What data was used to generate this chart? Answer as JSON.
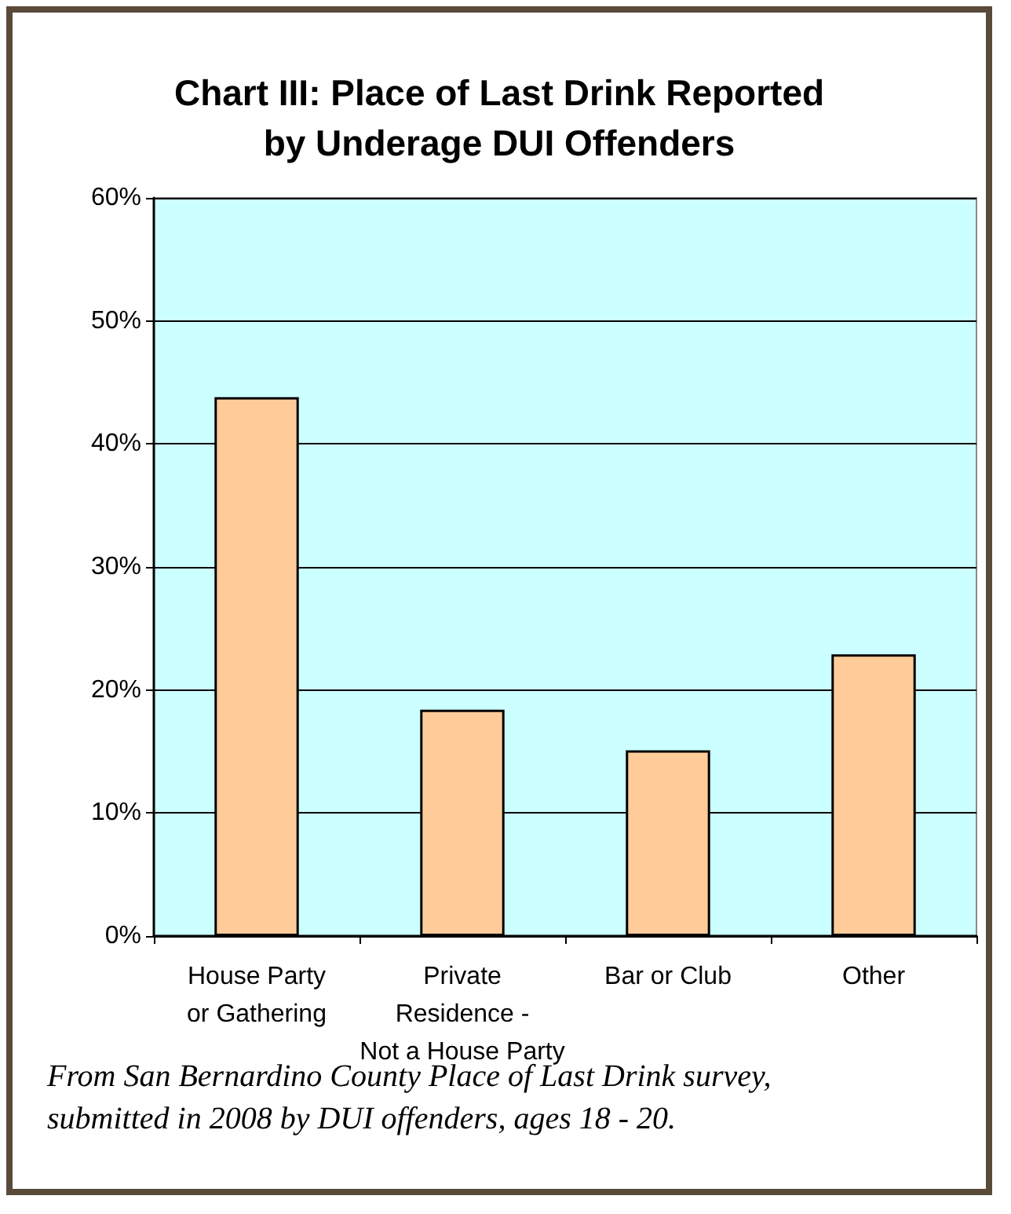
{
  "chart_data": {
    "type": "bar",
    "title": "Chart III: Place of Last Drink Reported\nby Underage DUI Offenders",
    "categories": [
      "House Party\nor Gathering",
      "Private\nResidence -\nNot a House Party",
      "Bar or Club",
      "Other"
    ],
    "values": [
      43.8,
      18.4,
      15.1,
      22.9
    ],
    "color": "#ffcc99",
    "ylim": [
      0,
      60
    ],
    "yticks": [
      {
        "value": 0,
        "label": "0%"
      },
      {
        "value": 10,
        "label": "10%"
      },
      {
        "value": 20,
        "label": "20%"
      },
      {
        "value": 30,
        "label": "30%"
      },
      {
        "value": 40,
        "label": "40%"
      },
      {
        "value": 50,
        "label": "50%"
      },
      {
        "value": 60,
        "label": "60%"
      }
    ],
    "grid": "y",
    "annotations": [
      "From San Bernardino County Place of Last Drink survey,\nsubmitted in 2008 by DUI offenders, ages 18 - 20."
    ]
  }
}
